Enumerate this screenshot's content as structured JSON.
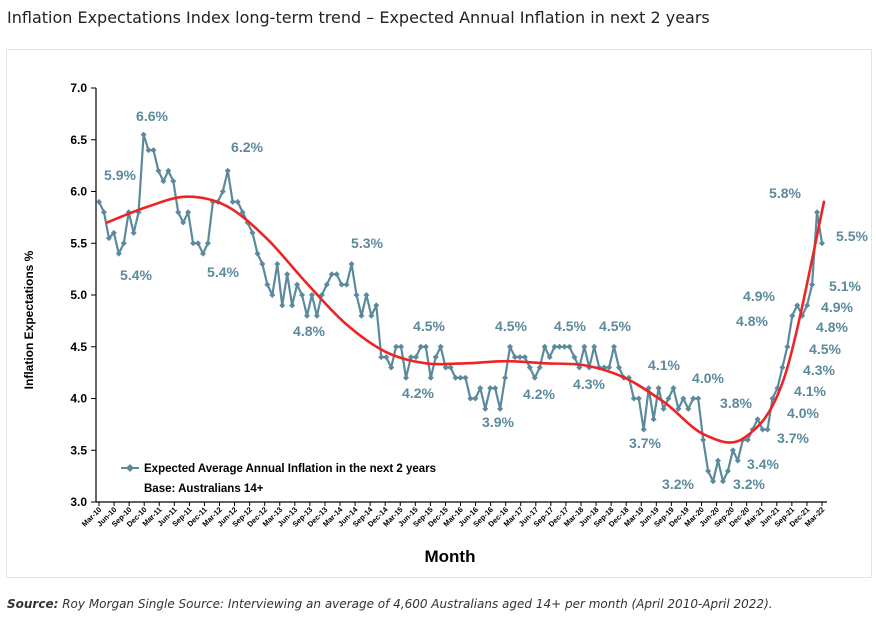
{
  "page": {
    "title": "Inflation Expectations Index long-term trend – Expected Annual Inflation in next 2 years",
    "source_label": "Source:",
    "source_text": " Roy Morgan Single Source: Interviewing an average of 4,600 Australians aged 14+ per month (April 2010-April 2022)."
  },
  "colors": {
    "series": "#5b8a9c",
    "trend": "#ee2424",
    "label": "#5b8a9c",
    "axis": "#000000"
  },
  "chart_data": {
    "type": "line",
    "xlabel": "Month",
    "ylabel": "Inflation Expectations %",
    "ylim": [
      3.0,
      7.0
    ],
    "yticks": [
      "3.0",
      "3.5",
      "4.0",
      "4.5",
      "5.0",
      "5.5",
      "6.0",
      "6.5",
      "7.0"
    ],
    "grid": false,
    "legend": {
      "position": "bottom-left",
      "series_label": "Expected Average Annual Inflation in the next 2 years",
      "base_label": "Base: Australians 14+"
    },
    "x_tick_labels": [
      "Mar-10",
      "Jun-10",
      "Sep-10",
      "Dec-10",
      "Mar-11",
      "Jun-11",
      "Sep-11",
      "Dec-11",
      "Mar-12",
      "Jun-12",
      "Sep-12",
      "Dec-12",
      "Mar-13",
      "Jun-13",
      "Sep-13",
      "Dec-13",
      "Mar-14",
      "Jun-14",
      "Sep-14",
      "Dec-14",
      "Mar-15",
      "Jun-15",
      "Sep-15",
      "Dec-15",
      "Mar-16",
      "Jun-16",
      "Sep-16",
      "Dec-16",
      "Mar-17",
      "Jun-17",
      "Sep-17",
      "Dec-17",
      "Mar-18",
      "Jun-18",
      "Sep-18",
      "Dec-18",
      "Mar-19",
      "Jun-19",
      "Sep-19",
      "Dec-19",
      "Mar-20",
      "Jun-20",
      "Sep-20",
      "Dec-20",
      "Mar-21",
      "Jun-21",
      "Sep-21",
      "Dec-21",
      "Mar-22"
    ],
    "series": [
      {
        "name": "Expected Average Annual Inflation in the next 2 years",
        "values": [
          5.9,
          5.8,
          5.55,
          5.6,
          5.4,
          5.5,
          5.8,
          5.6,
          5.8,
          6.55,
          6.4,
          6.4,
          6.2,
          6.1,
          6.2,
          6.1,
          5.8,
          5.7,
          5.8,
          5.5,
          5.5,
          5.4,
          5.5,
          5.9,
          5.9,
          6.0,
          6.2,
          5.9,
          5.9,
          5.8,
          5.7,
          5.6,
          5.4,
          5.3,
          5.1,
          5.0,
          5.3,
          4.9,
          5.2,
          4.9,
          5.1,
          5.0,
          4.8,
          5.0,
          4.8,
          5.0,
          5.1,
          5.2,
          5.2,
          5.1,
          5.1,
          5.3,
          5.0,
          4.8,
          5.0,
          4.8,
          4.9,
          4.4,
          4.4,
          4.3,
          4.5,
          4.5,
          4.2,
          4.4,
          4.4,
          4.5,
          4.5,
          4.2,
          4.4,
          4.5,
          4.3,
          4.3,
          4.2,
          4.2,
          4.2,
          4.0,
          4.0,
          4.1,
          3.9,
          4.1,
          4.1,
          3.9,
          4.2,
          4.5,
          4.4,
          4.4,
          4.4,
          4.3,
          4.2,
          4.3,
          4.5,
          4.4,
          4.5,
          4.5,
          4.5,
          4.5,
          4.4,
          4.3,
          4.5,
          4.3,
          4.5,
          4.3,
          4.3,
          4.3,
          4.5,
          4.3,
          4.2,
          4.2,
          4.0,
          4.0,
          3.7,
          4.1,
          3.8,
          4.1,
          3.9,
          4.0,
          4.1,
          3.9,
          4.0,
          3.9,
          4.0,
          4.0,
          3.6,
          3.3,
          3.2,
          3.4,
          3.2,
          3.3,
          3.5,
          3.4,
          3.6,
          3.6,
          3.7,
          3.8,
          3.7,
          3.7,
          4.0,
          4.1,
          4.3,
          4.5,
          4.8,
          4.9,
          4.8,
          4.9,
          5.1,
          5.8,
          5.5
        ]
      },
      {
        "name": "Trend",
        "type": "smooth",
        "values": [
          5.7,
          5.85,
          5.95,
          5.86,
          5.55,
          5.12,
          4.72,
          4.45,
          4.34,
          4.34,
          4.36,
          4.34,
          4.32,
          4.2,
          3.96,
          3.65,
          3.62,
          4.2,
          5.9
        ]
      }
    ],
    "annotations": [
      "5.9%",
      "5.4%",
      "6.6%",
      "5.4%",
      "6.2%",
      "4.8%",
      "5.3%",
      "4.5%",
      "4.2%",
      "3.9%",
      "4.5%",
      "4.2%",
      "4.5%",
      "4.3%",
      "4.5%",
      "4.1%",
      "3.7%",
      "4.0%",
      "3.2%",
      "3.8%",
      "3.2%",
      "3.4%",
      "3.7%",
      "4.9%",
      "4.8%",
      "5.8%",
      "5.5%",
      "5.1%",
      "4.9%",
      "4.8%",
      "4.5%",
      "4.3%",
      "4.1%",
      "4.0%"
    ]
  }
}
